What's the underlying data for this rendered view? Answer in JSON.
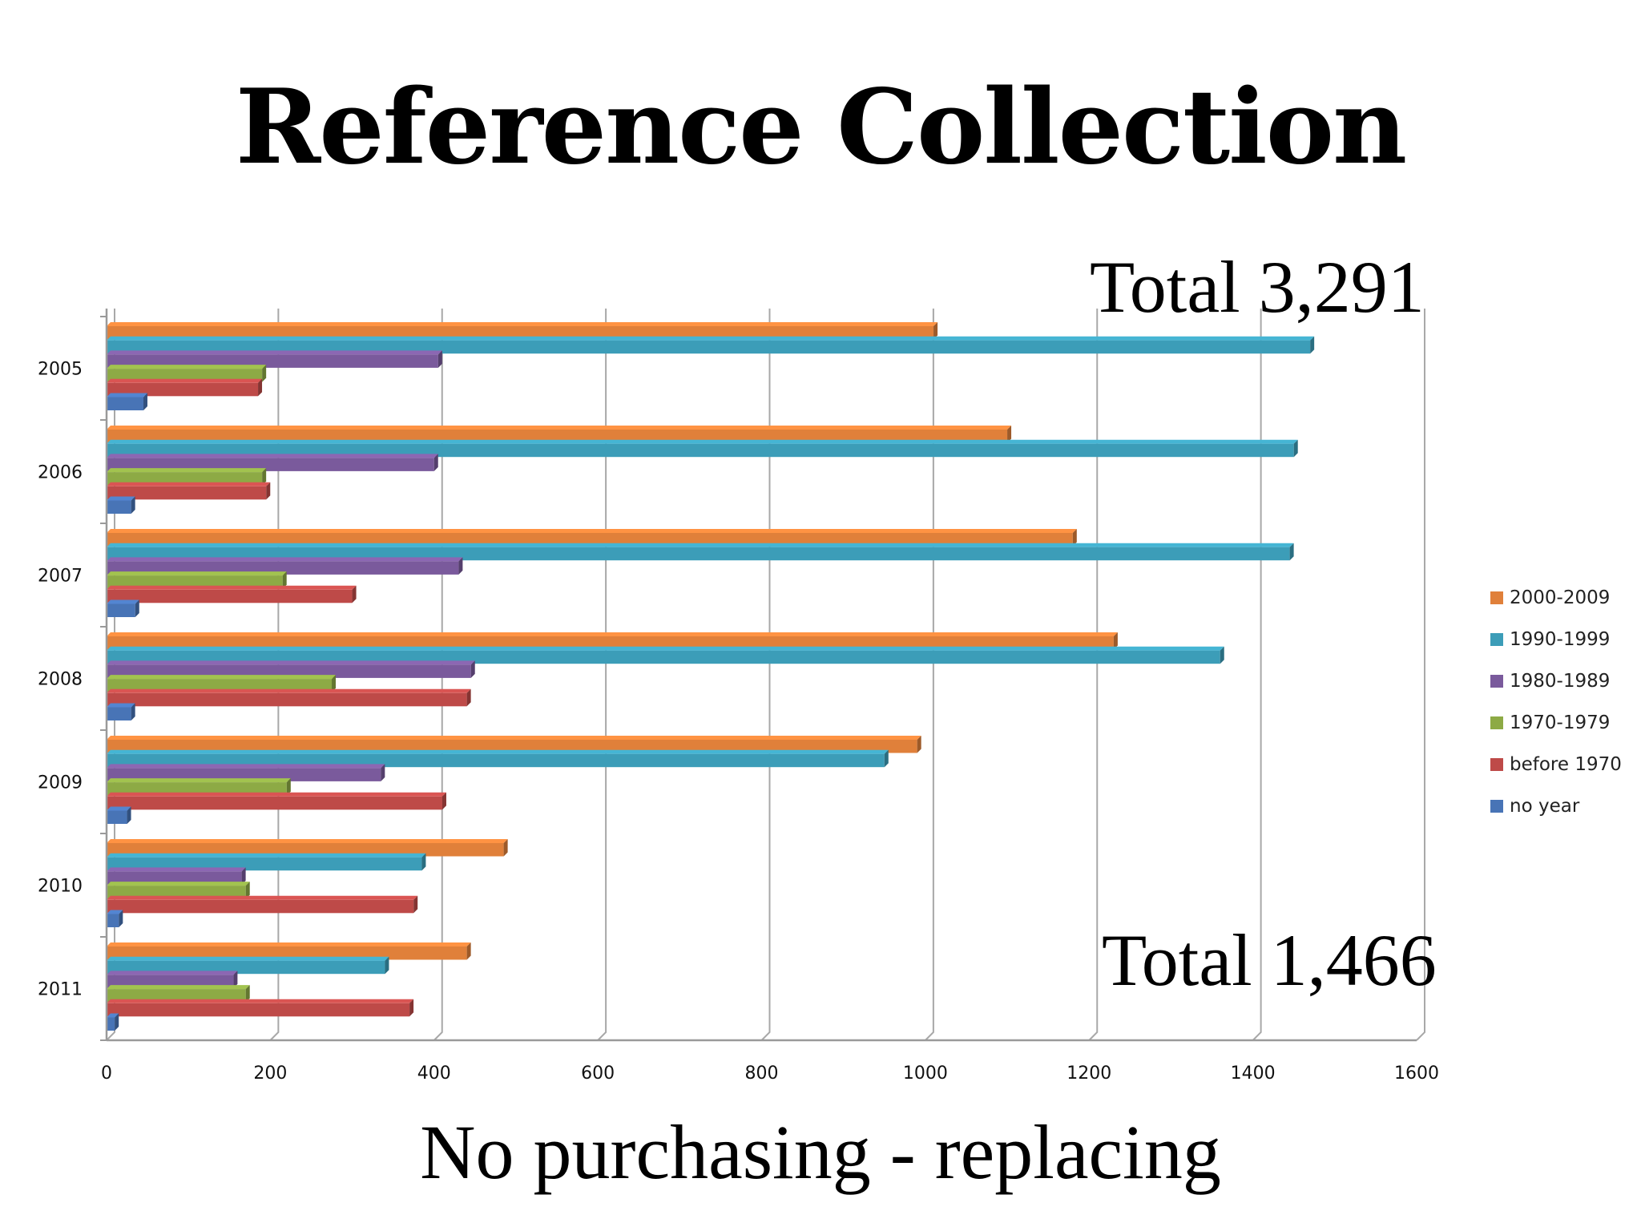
{
  "page": {
    "title": "Reference Collection",
    "note_top": "Total 3,291",
    "note_bottom": "Total 1,466",
    "caption": "No purchasing - replacing"
  },
  "chart_data": {
    "type": "bar",
    "orientation": "horizontal",
    "style": "3d-clustered",
    "title": "",
    "xlabel": "",
    "ylabel": "",
    "xlim": [
      0,
      1600
    ],
    "x_ticks": [
      "0",
      "200",
      "400",
      "600",
      "800",
      "1000",
      "1200",
      "1400",
      "1600"
    ],
    "grid": true,
    "legend_position": "right",
    "categories": [
      "2005",
      "2006",
      "2007",
      "2008",
      "2009",
      "2010",
      "2011"
    ],
    "series": [
      {
        "name": "2000-2009",
        "color": "#E0803A",
        "values": [
          1010,
          1100,
          1180,
          1230,
          990,
          485,
          440
        ]
      },
      {
        "name": "1990-1999",
        "color": "#3C9DB8",
        "values": [
          1470,
          1450,
          1445,
          1360,
          950,
          385,
          340
        ]
      },
      {
        "name": "1980-1989",
        "color": "#7A5A9C",
        "values": [
          405,
          400,
          430,
          445,
          335,
          165,
          155
        ]
      },
      {
        "name": "1970-1979",
        "color": "#8DAA45",
        "values": [
          190,
          190,
          215,
          275,
          220,
          170,
          170
        ]
      },
      {
        "name": "before 1970",
        "color": "#BE4A48",
        "values": [
          185,
          195,
          300,
          440,
          410,
          375,
          370
        ]
      },
      {
        "name": "no year",
        "color": "#4874B6",
        "values": [
          45,
          30,
          35,
          30,
          25,
          15,
          10
        ]
      }
    ]
  }
}
